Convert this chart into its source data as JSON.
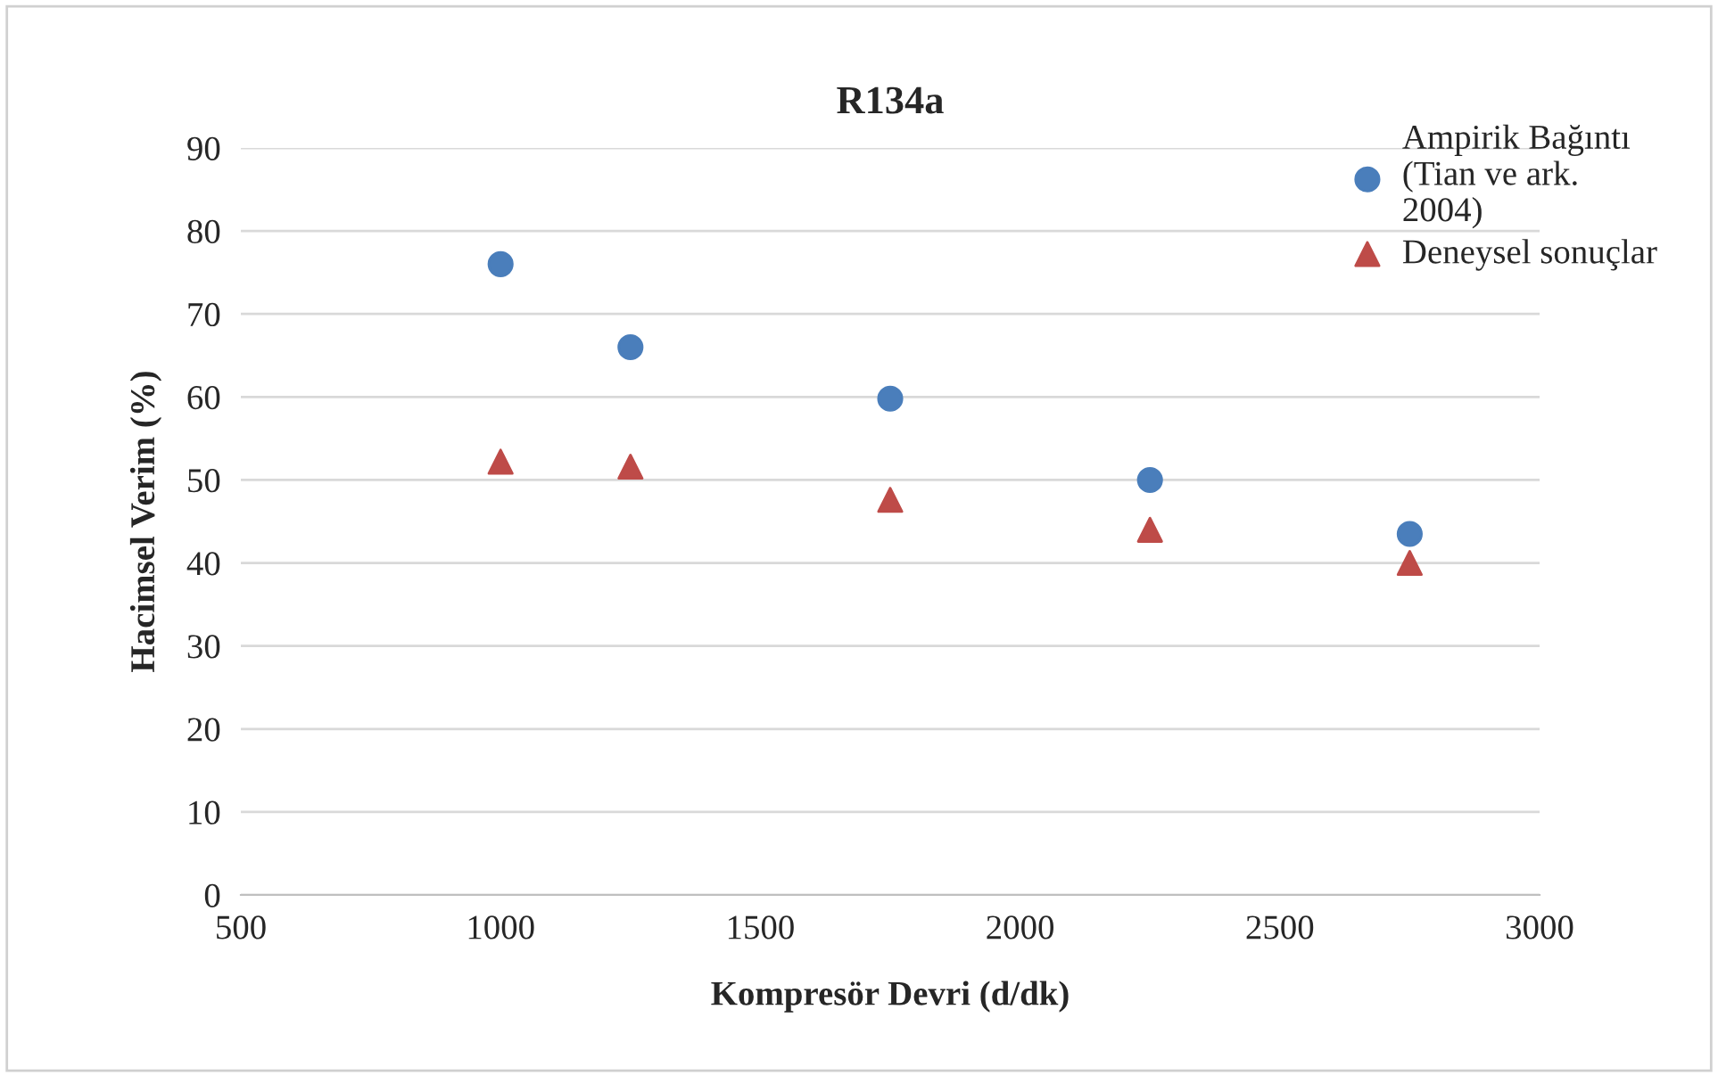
{
  "chart_data": {
    "type": "scatter",
    "title": "R134a",
    "xlabel": "Kompresör Devri (d/dk)",
    "ylabel": "Hacimsel Verim (%)",
    "xlim": [
      500,
      3000
    ],
    "xticks": [
      500,
      1000,
      1500,
      2000,
      2500,
      3000
    ],
    "ylim": [
      0,
      90
    ],
    "yticks": [
      0,
      10,
      20,
      30,
      40,
      50,
      60,
      70,
      80,
      90
    ],
    "grid": "y",
    "legend": "top right",
    "series": [
      {
        "name": "Ampirik Bağıntı\n(Tian ve ark.\n2004)",
        "color": "#4a7ebb",
        "marker": "circle",
        "x": [
          1000,
          1250,
          1750,
          2250,
          2750
        ],
        "values": [
          76,
          66,
          59.8,
          50,
          43.5
        ]
      },
      {
        "name": "Deneysel sonuçlar",
        "color": "#be4b48",
        "marker": "triangle",
        "x": [
          1000,
          1250,
          1750,
          2250,
          2750
        ],
        "values": [
          52.2,
          51.6,
          47.6,
          44,
          40
        ]
      }
    ]
  }
}
